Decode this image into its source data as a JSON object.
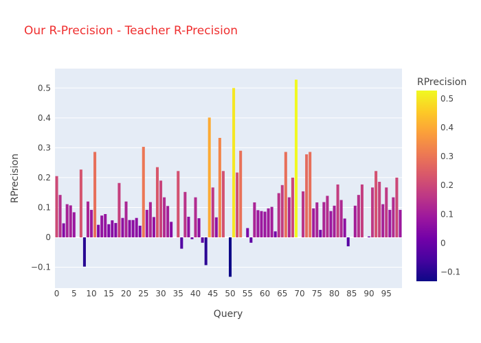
{
  "chart_data": {
    "type": "bar",
    "title": "Our R-Precision - Teacher R-Precision",
    "title_color": "#ef2f2f",
    "xlabel": "Query",
    "ylabel": "RPrecision",
    "x": [
      0,
      1,
      2,
      3,
      4,
      5,
      6,
      7,
      8,
      9,
      10,
      11,
      12,
      13,
      14,
      15,
      16,
      17,
      18,
      19,
      20,
      21,
      22,
      23,
      24,
      25,
      26,
      27,
      28,
      29,
      30,
      31,
      32,
      33,
      34,
      35,
      36,
      37,
      38,
      39,
      40,
      41,
      42,
      43,
      44,
      45,
      46,
      47,
      48,
      49,
      50,
      51,
      52,
      53,
      54,
      55,
      56,
      57,
      58,
      59,
      60,
      61,
      62,
      63,
      64,
      65,
      66,
      67,
      68,
      69,
      70,
      71,
      72,
      73,
      74,
      75,
      76,
      77,
      78,
      79,
      80,
      81,
      82,
      83,
      84,
      85,
      86,
      87,
      88,
      89,
      90,
      91,
      92,
      93,
      94,
      95,
      96,
      97,
      98,
      99
    ],
    "values": [
      0.205,
      0.142,
      0.047,
      0.111,
      0.107,
      0.084,
      0,
      0.227,
      -0.098,
      0.12,
      0.092,
      0.286,
      0.042,
      0.073,
      0.078,
      0.044,
      0.057,
      0.048,
      0.182,
      0.065,
      0.12,
      0.058,
      0.058,
      0.065,
      0.039,
      0.303,
      0.092,
      0.118,
      0.068,
      0.235,
      0.19,
      0.134,
      0.105,
      0.052,
      0,
      0.222,
      -0.038,
      0.152,
      0.069,
      -0.006,
      0.134,
      0.064,
      -0.018,
      -0.093,
      0.401,
      0.167,
      0.067,
      0.333,
      0.222,
      0,
      -0.132,
      0.5,
      0.217,
      0.29,
      0,
      0.031,
      -0.018,
      0.117,
      0.091,
      0.088,
      0.086,
      0.097,
      0.102,
      0.02,
      0.148,
      0.175,
      0.286,
      0.134,
      0.2,
      0.528,
      0,
      0.154,
      0.278,
      0.286,
      0.097,
      0.117,
      0.025,
      0.118,
      0.139,
      0.088,
      0.106,
      0.177,
      0.125,
      0.063,
      -0.03,
      0,
      0.106,
      0.142,
      0.177,
      0,
      0.003,
      0.167,
      0.222,
      0.186,
      0.111,
      0.167,
      0.092,
      0.134,
      0.2,
      0.092
    ],
    "xlim": [
      -0.5,
      99.5
    ],
    "ylim": [
      -0.17,
      0.565
    ],
    "y_ticks": [
      -0.1,
      0,
      0.1,
      0.2,
      0.3,
      0.4,
      0.5
    ],
    "y_tick_labels": [
      "−0.1",
      "0",
      "0.1",
      "0.2",
      "0.3",
      "0.4",
      "0.5"
    ],
    "x_ticks": [
      0,
      5,
      10,
      15,
      20,
      25,
      30,
      35,
      40,
      45,
      50,
      55,
      60,
      65,
      70,
      75,
      80,
      85,
      90,
      95
    ],
    "x_tick_labels": [
      "0",
      "5",
      "10",
      "15",
      "20",
      "25",
      "30",
      "35",
      "40",
      "45",
      "50",
      "55",
      "60",
      "65",
      "70",
      "75",
      "80",
      "85",
      "90",
      "95"
    ],
    "grid": true,
    "plot_background": "#e5ecf6",
    "grid_color": "#ffffff",
    "colorscale": "plasma",
    "colorbar": {
      "title": "RPrecision",
      "range": [
        -0.132,
        0.528
      ],
      "ticks": [
        -0.1,
        0,
        0.1,
        0.2,
        0.3,
        0.4,
        0.5
      ],
      "tick_labels": [
        "−0.1",
        "0",
        "0.1",
        "0.2",
        "0.3",
        "0.4",
        "0.5"
      ]
    }
  }
}
